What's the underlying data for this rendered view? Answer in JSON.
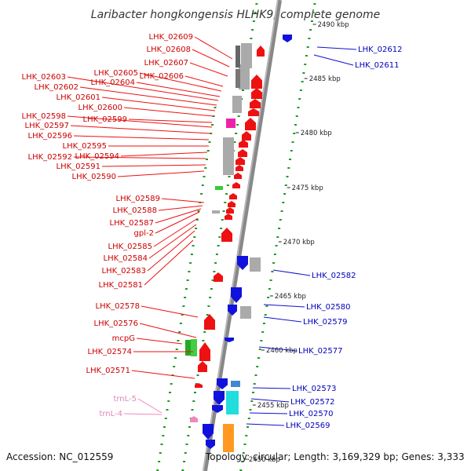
{
  "title": "Laribacter hongkongensis HLHK9, complete genome",
  "footer": {
    "accession": "Accession: NC_012559",
    "topology": "Topology: circular; Length: 3,169,329 bp; Genes: 3,333"
  },
  "colors": {
    "forward": "#ee1111",
    "reverse": "#1111dd",
    "trna": "#ee88bb"
  },
  "ticks": [
    "2490 kbp",
    "2485 kbp",
    "2480 kbp",
    "2475 kbp",
    "2470 kbp",
    "2465 kbp",
    "2460 kbp",
    "2455 kbp",
    "2450 kbp"
  ],
  "left_labels": [
    "LHK_02609",
    "LHK_02608",
    "LHK_02607",
    "LHK_02606",
    "LHK_02605",
    "LHK_02604",
    "LHK_02603",
    "LHK_02602",
    "LHK_02601",
    "LHK_02600",
    "LHK_02599",
    "LHK_02598",
    "LHK_02597",
    "LHK_02596",
    "LHK_02595",
    "LHK_02594",
    "LHK_02592",
    "LHK_02591",
    "LHK_02590",
    "LHK_02589",
    "LHK_02588",
    "LHK_02587",
    "gpl-2",
    "LHK_02585",
    "LHK_02584",
    "LHK_02583",
    "LHK_02581",
    "LHK_02578",
    "LHK_02576",
    "mcpG",
    "LHK_02574",
    "LHK_02571"
  ],
  "trna_labels": [
    "trnL-5",
    "trnL-4"
  ],
  "right_labels": [
    "LHK_02612",
    "LHK_02611",
    "LHK_02582",
    "LHK_02580",
    "LHK_02579",
    "LHK_02577",
    "LHK_02573",
    "LHK_02572",
    "LHK_02570",
    "LHK_02569"
  ]
}
